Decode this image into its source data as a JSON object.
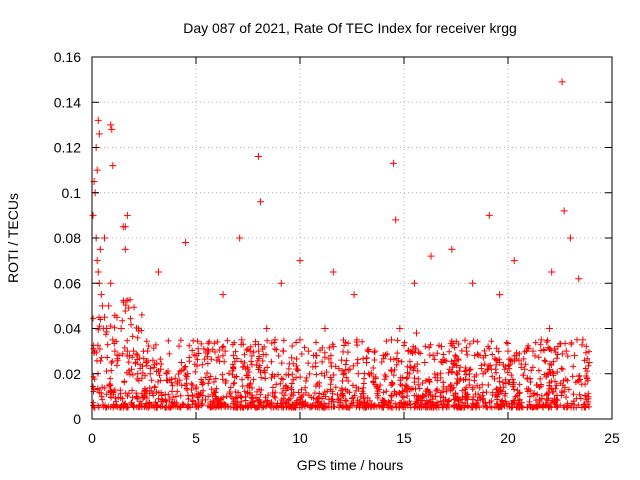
{
  "chart_data": {
    "type": "scatter",
    "title": "Day 087 of 2021, Rate Of TEC Index for receiver krgg",
    "xlabel": "GPS time / hours",
    "ylabel": "ROTI / TECUs",
    "xlim": [
      0,
      25
    ],
    "ylim": [
      0,
      0.16
    ],
    "xticks": [
      0,
      5,
      10,
      15,
      20,
      25
    ],
    "xtick_labels": [
      "0",
      "5",
      "10",
      "15",
      "20",
      "25"
    ],
    "yticks": [
      0,
      0.02,
      0.04,
      0.06,
      0.08,
      0.1,
      0.12,
      0.14,
      0.16
    ],
    "ytick_labels": [
      "0",
      "0.02",
      "0.04",
      "0.06",
      "0.08",
      "0.1",
      "0.12",
      "0.14",
      "0.16"
    ],
    "grid": true,
    "marker": "+",
    "marker_color": "#ff0000",
    "series": [
      {
        "name": "ROTI",
        "x": [
          0.05,
          0.1,
          0.15,
          0.2,
          0.25,
          0.3,
          0.35,
          0.4,
          0.45,
          0.5,
          0.6,
          0.7,
          0.8,
          0.9,
          1.0,
          1.1,
          1.2,
          1.3,
          1.4,
          1.5,
          1.6,
          1.7,
          1.8,
          1.9,
          2.0,
          2.2,
          2.4,
          2.6,
          2.8,
          3.0,
          3.3,
          3.6,
          4.0,
          4.3,
          4.6,
          5.0,
          5.3,
          5.6,
          6.0,
          6.4,
          6.8,
          7.2,
          7.6,
          8.0,
          8.4,
          8.8,
          9.2,
          9.6,
          10.0,
          10.4,
          10.8,
          11.2,
          11.6,
          12.0,
          12.4,
          12.8,
          13.2,
          13.6,
          14.0,
          14.4,
          14.8,
          15.2,
          15.6,
          16.0,
          16.4,
          16.8,
          17.2,
          17.6,
          18.0,
          18.4,
          18.8,
          19.2,
          19.6,
          20.0,
          20.4,
          20.8,
          21.2,
          21.6,
          22.0,
          22.4,
          22.8,
          23.2,
          23.6,
          23.9,
          0.3,
          0.35,
          0.9,
          0.95,
          0.2,
          0.25,
          1.0,
          1.6,
          1.7,
          8.0,
          8.1,
          14.5,
          14.6,
          19.1,
          22.6,
          22.7,
          23.0,
          4.5,
          7.1,
          10.0,
          11.6,
          16.3,
          17.3,
          18.3,
          20.3,
          22.1,
          0.6,
          3.2,
          6.3,
          9.1,
          12.6,
          15.5,
          19.6,
          23.4
        ],
        "y": [
          0.09,
          0.105,
          0.1,
          0.08,
          0.07,
          0.065,
          0.06,
          0.075,
          0.055,
          0.05,
          0.045,
          0.04,
          0.05,
          0.06,
          0.035,
          0.03,
          0.045,
          0.028,
          0.04,
          0.085,
          0.075,
          0.03,
          0.028,
          0.022,
          0.03,
          0.02,
          0.018,
          0.025,
          0.02,
          0.024,
          0.022,
          0.02,
          0.018,
          0.025,
          0.02,
          0.028,
          0.024,
          0.03,
          0.026,
          0.03,
          0.028,
          0.035,
          0.03,
          0.033,
          0.04,
          0.035,
          0.03,
          0.027,
          0.035,
          0.03,
          0.028,
          0.04,
          0.032,
          0.026,
          0.022,
          0.02,
          0.025,
          0.03,
          0.028,
          0.035,
          0.04,
          0.03,
          0.038,
          0.025,
          0.028,
          0.032,
          0.022,
          0.026,
          0.03,
          0.028,
          0.02,
          0.022,
          0.025,
          0.03,
          0.028,
          0.022,
          0.03,
          0.035,
          0.04,
          0.032,
          0.03,
          0.028,
          0.035,
          0.025,
          0.132,
          0.126,
          0.13,
          0.128,
          0.12,
          0.11,
          0.112,
          0.085,
          0.09,
          0.116,
          0.096,
          0.113,
          0.088,
          0.09,
          0.149,
          0.092,
          0.08,
          0.078,
          0.08,
          0.07,
          0.065,
          0.072,
          0.075,
          0.06,
          0.07,
          0.065,
          0.08,
          0.065,
          0.055,
          0.06,
          0.055,
          0.06,
          0.055,
          0.062
        ]
      }
    ]
  }
}
